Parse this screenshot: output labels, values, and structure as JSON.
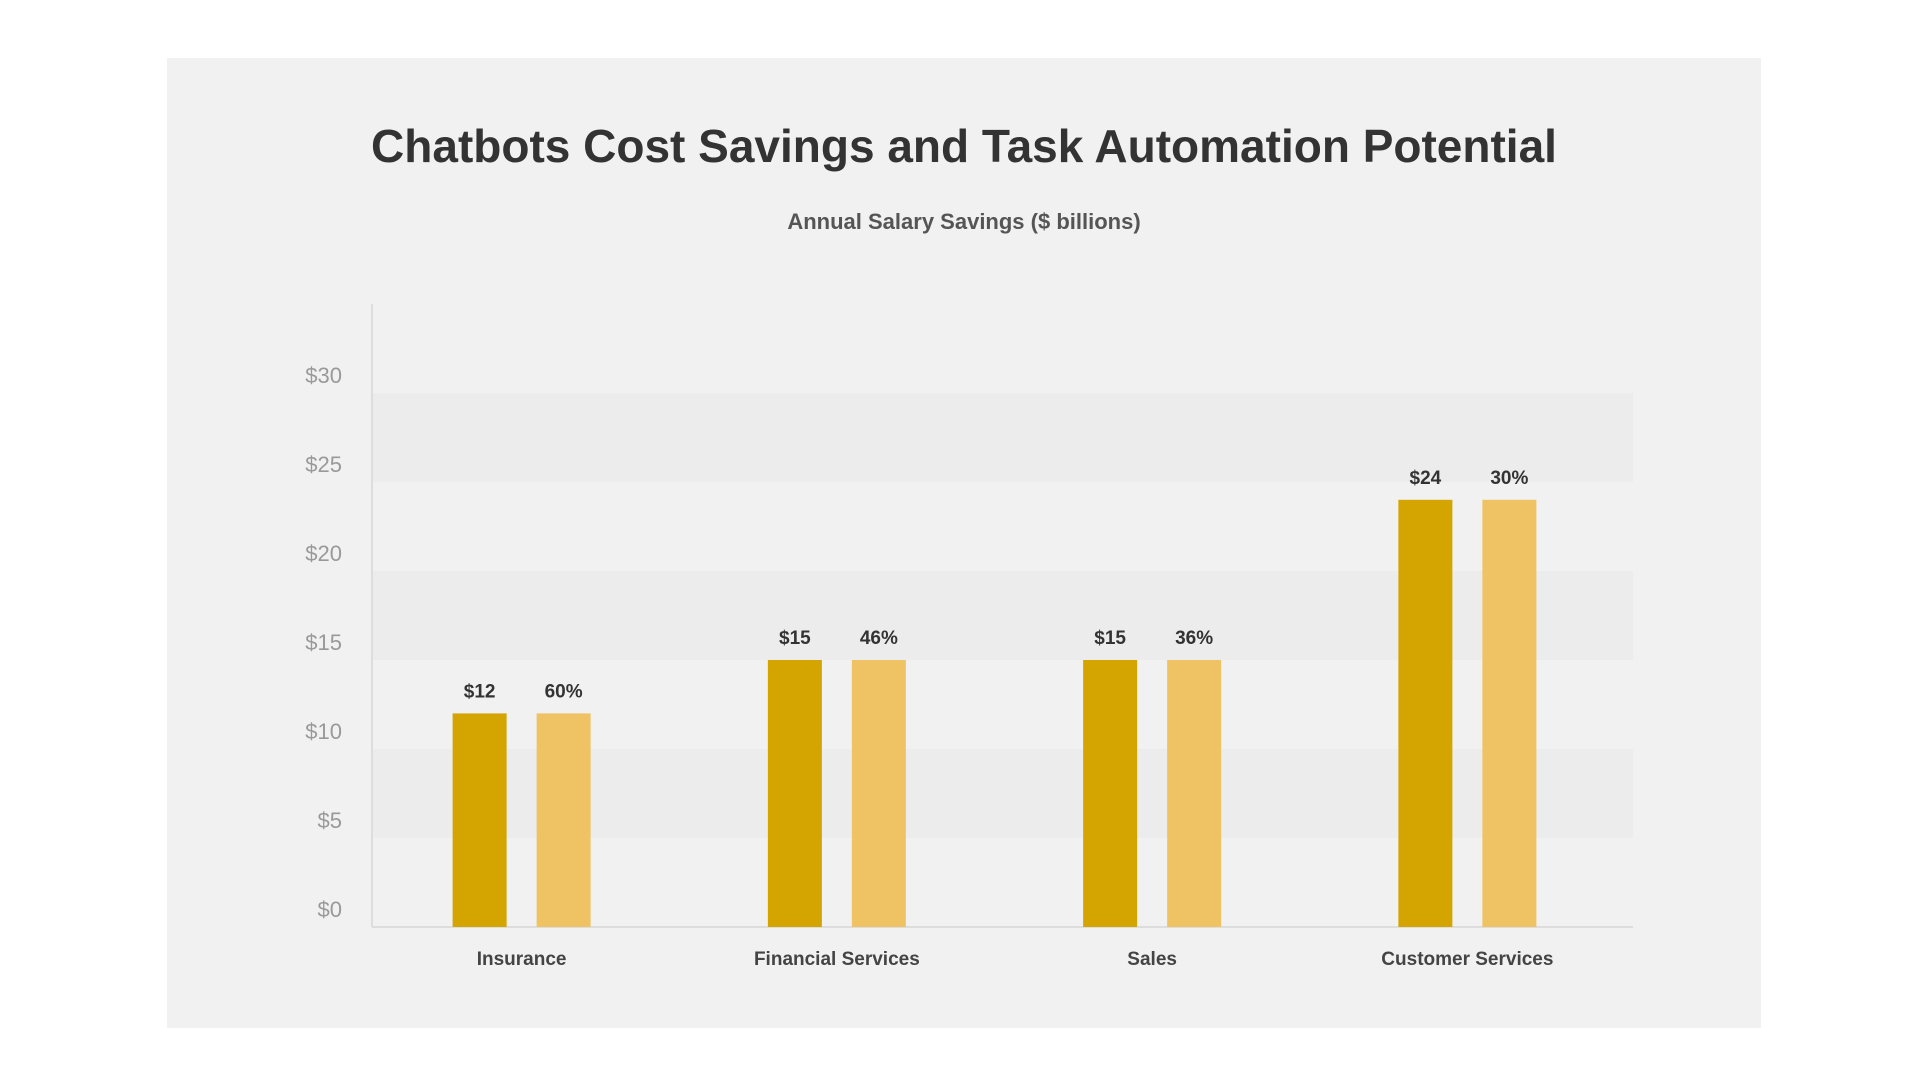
{
  "chart_data": {
    "type": "bar",
    "title": "Chatbots Cost Savings and Task Automation Potential",
    "subtitle": "Annual Salary Savings ($ billions)",
    "categories": [
      "Insurance",
      "Financial Services",
      "Sales",
      "Customer Services"
    ],
    "series": [
      {
        "color": "#d4a500",
        "values": [
          12,
          15,
          15,
          24
        ],
        "value_labels": [
          "$12",
          "$15",
          "$15",
          "$24"
        ]
      },
      {
        "color": "#efc264",
        "values": [
          60,
          46,
          36,
          30
        ],
        "value_labels": [
          "60%",
          "46%",
          "36%",
          "30%"
        ]
      }
    ],
    "ylim": [
      0,
      35
    ],
    "yticks": [
      {
        "value": 0,
        "label": "$0"
      },
      {
        "value": 5,
        "label": "$5"
      },
      {
        "value": 10,
        "label": "$10"
      },
      {
        "value": 15,
        "label": "$15"
      },
      {
        "value": 20,
        "label": "$20"
      },
      {
        "value": 25,
        "label": "$25"
      },
      {
        "value": 30,
        "label": "$30"
      }
    ],
    "grid": true
  }
}
